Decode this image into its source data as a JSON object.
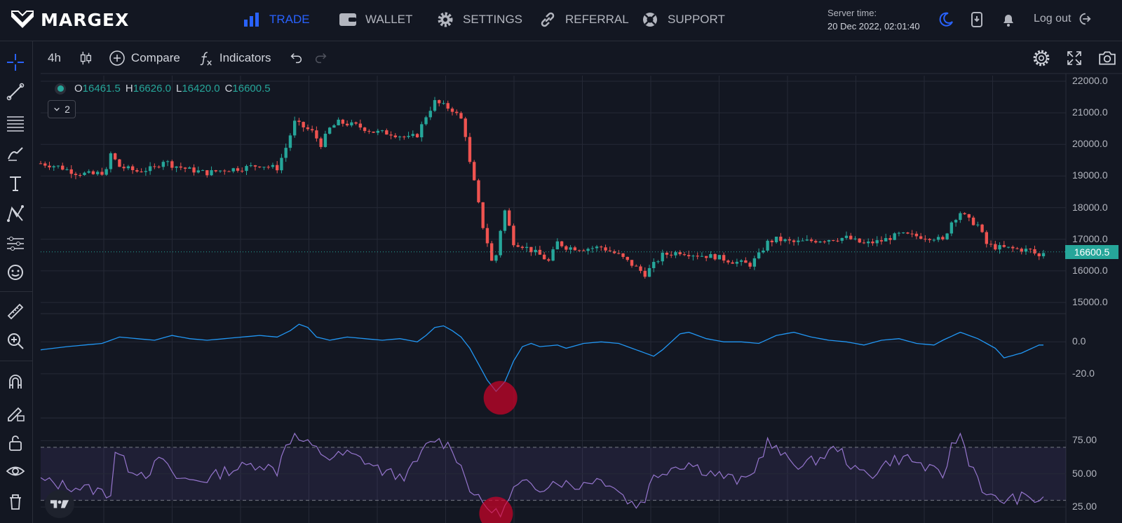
{
  "brand": {
    "name": "MARGEX"
  },
  "nav": {
    "trade": "TRADE",
    "wallet": "WALLET",
    "settings": "SETTINGS",
    "referral": "REFERRAL",
    "support": "SUPPORT"
  },
  "server": {
    "label": "Server time:",
    "value": "20 Dec 2022, 02:01:40"
  },
  "logout": "Log out",
  "toolbar": {
    "interval": "4h",
    "compare": "Compare",
    "indicators": "Indicators"
  },
  "legend": {
    "open_k": "O",
    "open_v": "16461.5",
    "high_k": "H",
    "high_v": "16626.0",
    "low_k": "L",
    "low_v": "16420.0",
    "close_k": "C",
    "close_v": "16600.5",
    "collapsed_count": "2"
  },
  "last_price": "16600.5",
  "chart_data": [
    {
      "type": "candlestick",
      "y_ticks": [
        "22000.0",
        "21000.0",
        "20000.0",
        "19000.0",
        "18000.0",
        "17000.0",
        "16000.0",
        "15000.0"
      ],
      "ylim": [
        15000,
        22000
      ],
      "last_price": 16600.5,
      "close_path": [
        [
          0,
          19400
        ],
        [
          4,
          19300
        ],
        [
          8,
          19100
        ],
        [
          12,
          19050
        ],
        [
          15,
          19150
        ],
        [
          16,
          19700
        ],
        [
          18,
          19300
        ],
        [
          22,
          19150
        ],
        [
          26,
          19250
        ],
        [
          28,
          19500
        ],
        [
          30,
          19350
        ],
        [
          34,
          19200
        ],
        [
          38,
          19100
        ],
        [
          42,
          19200
        ],
        [
          46,
          19250
        ],
        [
          50,
          19350
        ],
        [
          54,
          19250
        ],
        [
          56,
          19900
        ],
        [
          58,
          20700
        ],
        [
          62,
          20400
        ],
        [
          64,
          20000
        ],
        [
          66,
          20500
        ],
        [
          68,
          20700
        ],
        [
          72,
          20600
        ],
        [
          76,
          20400
        ],
        [
          80,
          20350
        ],
        [
          84,
          20200
        ],
        [
          86,
          20300
        ],
        [
          88,
          20900
        ],
        [
          90,
          21350
        ],
        [
          94,
          21100
        ],
        [
          96,
          20800
        ],
        [
          97,
          20300
        ],
        [
          98,
          19400
        ],
        [
          99,
          18800
        ],
        [
          100,
          18100
        ],
        [
          101,
          17400
        ],
        [
          102,
          16900
        ],
        [
          103,
          16300
        ],
        [
          104,
          16500
        ],
        [
          105,
          17300
        ],
        [
          106,
          17900
        ],
        [
          107,
          17400
        ],
        [
          108,
          16900
        ],
        [
          110,
          16800
        ],
        [
          114,
          16500
        ],
        [
          116,
          16300
        ],
        [
          118,
          16900
        ],
        [
          120,
          16750
        ],
        [
          124,
          16700
        ],
        [
          128,
          16750
        ],
        [
          132,
          16500
        ],
        [
          134,
          16300
        ],
        [
          136,
          16100
        ],
        [
          138,
          15900
        ],
        [
          140,
          16200
        ],
        [
          142,
          16500
        ],
        [
          146,
          16600
        ],
        [
          150,
          16500
        ],
        [
          154,
          16450
        ],
        [
          158,
          16300
        ],
        [
          162,
          16200
        ],
        [
          164,
          16500
        ],
        [
          166,
          16900
        ],
        [
          168,
          17000
        ],
        [
          172,
          16900
        ],
        [
          176,
          16950
        ],
        [
          180,
          17000
        ],
        [
          184,
          17050
        ],
        [
          188,
          16850
        ],
        [
          192,
          16950
        ],
        [
          196,
          17150
        ],
        [
          200,
          17100
        ],
        [
          204,
          17050
        ],
        [
          206,
          16950
        ],
        [
          208,
          17550
        ],
        [
          210,
          17850
        ],
        [
          212,
          17600
        ],
        [
          214,
          17450
        ],
        [
          216,
          16850
        ],
        [
          218,
          16750
        ],
        [
          222,
          16700
        ],
        [
          226,
          16650
        ],
        [
          228,
          16450
        ],
        [
          229,
          16600
        ]
      ]
    },
    {
      "type": "line",
      "name": "oscillator",
      "y_ticks": [
        "0.0",
        "-20.0"
      ],
      "ylim": [
        -45,
        15
      ],
      "values_path": [
        [
          0,
          -5
        ],
        [
          6,
          -3
        ],
        [
          10,
          -2
        ],
        [
          14,
          -1
        ],
        [
          18,
          3
        ],
        [
          22,
          2
        ],
        [
          26,
          1
        ],
        [
          30,
          4
        ],
        [
          34,
          2
        ],
        [
          38,
          1
        ],
        [
          42,
          2
        ],
        [
          46,
          3
        ],
        [
          50,
          4
        ],
        [
          54,
          3
        ],
        [
          57,
          7
        ],
        [
          59,
          11
        ],
        [
          61,
          9
        ],
        [
          63,
          3
        ],
        [
          66,
          1
        ],
        [
          70,
          3
        ],
        [
          74,
          2
        ],
        [
          78,
          1
        ],
        [
          82,
          2
        ],
        [
          86,
          0
        ],
        [
          88,
          4
        ],
        [
          90,
          9
        ],
        [
          92,
          10
        ],
        [
          94,
          7
        ],
        [
          96,
          3
        ],
        [
          98,
          -4
        ],
        [
          100,
          -14
        ],
        [
          102,
          -24
        ],
        [
          104,
          -31
        ],
        [
          106,
          -25
        ],
        [
          108,
          -12
        ],
        [
          110,
          -3
        ],
        [
          112,
          -1
        ],
        [
          114,
          -3
        ],
        [
          118,
          -2
        ],
        [
          120,
          -4
        ],
        [
          124,
          -1
        ],
        [
          128,
          0
        ],
        [
          132,
          -1
        ],
        [
          134,
          -3
        ],
        [
          138,
          -7
        ],
        [
          140,
          -9
        ],
        [
          142,
          -5
        ],
        [
          146,
          5
        ],
        [
          148,
          6
        ],
        [
          152,
          2
        ],
        [
          156,
          0
        ],
        [
          160,
          0
        ],
        [
          164,
          -1
        ],
        [
          168,
          4
        ],
        [
          172,
          6
        ],
        [
          176,
          3
        ],
        [
          180,
          1
        ],
        [
          184,
          0
        ],
        [
          188,
          -2
        ],
        [
          192,
          1
        ],
        [
          196,
          2
        ],
        [
          200,
          -1
        ],
        [
          204,
          -2
        ],
        [
          206,
          1
        ],
        [
          210,
          6
        ],
        [
          214,
          2
        ],
        [
          218,
          -4
        ],
        [
          220,
          -10
        ],
        [
          224,
          -7
        ],
        [
          228,
          -2
        ],
        [
          229,
          -2
        ]
      ],
      "highlight_circle_at": [
        105,
        -35
      ]
    },
    {
      "type": "line",
      "name": "rsi",
      "y_ticks": [
        "75.00",
        "50.00",
        "25.00"
      ],
      "ylim": [
        15,
        90
      ],
      "bands": [
        30,
        70
      ],
      "values_path": [
        [
          0,
          45
        ],
        [
          4,
          42
        ],
        [
          8,
          40
        ],
        [
          12,
          38
        ],
        [
          16,
          35
        ],
        [
          17,
          68
        ],
        [
          20,
          55
        ],
        [
          24,
          50
        ],
        [
          28,
          62
        ],
        [
          30,
          48
        ],
        [
          34,
          45
        ],
        [
          38,
          46
        ],
        [
          42,
          52
        ],
        [
          46,
          55
        ],
        [
          50,
          58
        ],
        [
          54,
          52
        ],
        [
          56,
          74
        ],
        [
          58,
          78
        ],
        [
          62,
          70
        ],
        [
          66,
          62
        ],
        [
          70,
          65
        ],
        [
          74,
          60
        ],
        [
          78,
          52
        ],
        [
          82,
          48
        ],
        [
          84,
          50
        ],
        [
          88,
          70
        ],
        [
          90,
          76
        ],
        [
          94,
          70
        ],
        [
          96,
          55
        ],
        [
          98,
          40
        ],
        [
          100,
          30
        ],
        [
          102,
          25
        ],
        [
          104,
          20
        ],
        [
          106,
          24
        ],
        [
          108,
          38
        ],
        [
          110,
          42
        ],
        [
          114,
          40
        ],
        [
          118,
          45
        ],
        [
          122,
          40
        ],
        [
          126,
          46
        ],
        [
          130,
          44
        ],
        [
          134,
          30
        ],
        [
          136,
          26
        ],
        [
          138,
          32
        ],
        [
          140,
          48
        ],
        [
          144,
          55
        ],
        [
          148,
          58
        ],
        [
          152,
          52
        ],
        [
          156,
          48
        ],
        [
          160,
          44
        ],
        [
          162,
          48
        ],
        [
          164,
          60
        ],
        [
          166,
          74
        ],
        [
          170,
          62
        ],
        [
          174,
          56
        ],
        [
          178,
          62
        ],
        [
          182,
          70
        ],
        [
          186,
          52
        ],
        [
          190,
          50
        ],
        [
          194,
          60
        ],
        [
          198,
          62
        ],
        [
          202,
          55
        ],
        [
          206,
          48
        ],
        [
          208,
          70
        ],
        [
          210,
          80
        ],
        [
          212,
          60
        ],
        [
          214,
          48
        ],
        [
          216,
          32
        ],
        [
          220,
          30
        ],
        [
          224,
          32
        ],
        [
          228,
          30
        ],
        [
          229,
          34
        ]
      ],
      "highlight_circle_at": [
        104,
        20
      ]
    }
  ]
}
